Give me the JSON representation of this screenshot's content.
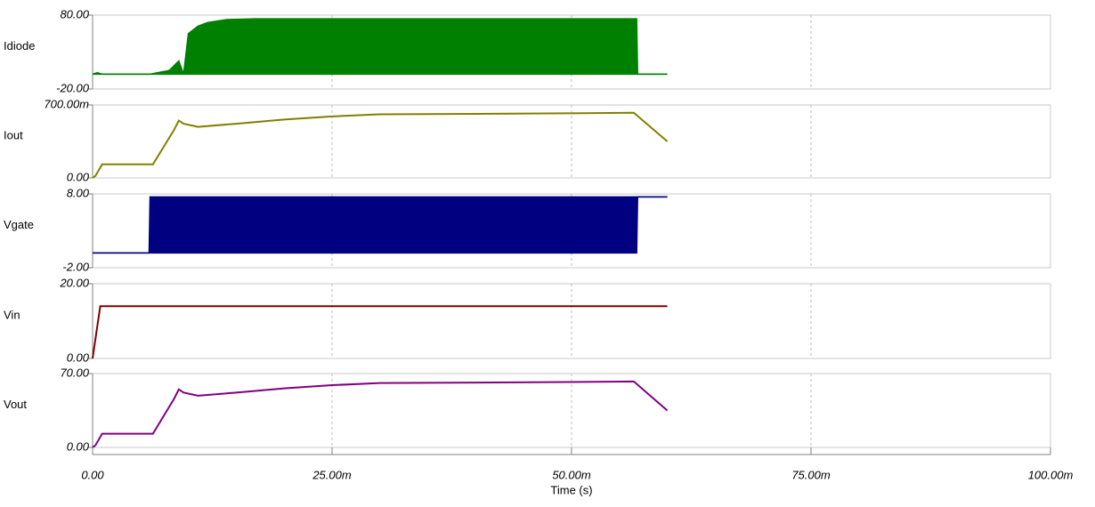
{
  "chart_data": [
    {
      "type": "band",
      "label": "Idiode",
      "color": "#008000",
      "grid": true,
      "xlim": [
        0,
        0.1
      ],
      "ylim": [
        -20,
        80
      ],
      "yticks": [
        {
          "value": -20,
          "label": "-20.00"
        },
        {
          "value": 80,
          "label": "80.00"
        }
      ],
      "x": [
        0,
        0.0005,
        0.001,
        0.006,
        0.008,
        0.009,
        0.0095,
        0.01,
        0.011,
        0.012,
        0.014,
        0.017,
        0.0568,
        0.0569,
        0.06
      ],
      "max": [
        0,
        2,
        0,
        0,
        5,
        18,
        0,
        55,
        65,
        70,
        74,
        75,
        75,
        0,
        0
      ],
      "min": [
        0,
        0,
        0,
        0,
        0,
        0,
        0,
        0,
        0,
        0,
        0,
        0,
        0,
        0,
        0
      ]
    },
    {
      "type": "line",
      "label": "Iout",
      "color": "#808000",
      "grid": true,
      "xlim": [
        0,
        0.1
      ],
      "ylim": [
        0,
        0.7
      ],
      "yticks": [
        {
          "value": 0,
          "label": "0.00"
        },
        {
          "value": 0.7,
          "label": "700.00m"
        }
      ],
      "x": [
        0,
        0.0003,
        0.001,
        0.0063,
        0.0085,
        0.009,
        0.0095,
        0.011,
        0.015,
        0.02,
        0.025,
        0.03,
        0.04,
        0.05,
        0.0565,
        0.06
      ],
      "values": [
        0,
        0.02,
        0.13,
        0.13,
        0.46,
        0.55,
        0.52,
        0.49,
        0.52,
        0.56,
        0.59,
        0.61,
        0.615,
        0.62,
        0.625,
        0.35
      ]
    },
    {
      "type": "band",
      "label": "Vgate",
      "color": "#000080",
      "grid": true,
      "xlim": [
        0,
        0.1
      ],
      "ylim": [
        -2,
        8
      ],
      "yticks": [
        {
          "value": -2,
          "label": "-2.00"
        },
        {
          "value": 8,
          "label": "8.00"
        }
      ],
      "x": [
        0,
        0.0059,
        0.006,
        0.0568,
        0.0569,
        0.06
      ],
      "max": [
        0,
        0,
        7.6,
        7.6,
        7.6,
        7.6
      ],
      "min": [
        0,
        0,
        0,
        0,
        7.6,
        7.6
      ]
    },
    {
      "type": "line",
      "label": "Vin",
      "color": "#800000",
      "grid": true,
      "xlim": [
        0,
        0.1
      ],
      "ylim": [
        0,
        20
      ],
      "yticks": [
        {
          "value": 0,
          "label": "0.00"
        },
        {
          "value": 20,
          "label": "20.00"
        }
      ],
      "x": [
        0,
        0.0008,
        0.06
      ],
      "values": [
        0,
        14,
        14
      ]
    },
    {
      "type": "line",
      "label": "Vout",
      "color": "#800080",
      "grid": true,
      "xlim": [
        0,
        0.1
      ],
      "ylim": [
        0,
        70
      ],
      "yticks": [
        {
          "value": 0,
          "label": "0.00"
        },
        {
          "value": 70,
          "label": "70.00"
        }
      ],
      "x": [
        0,
        0.0003,
        0.001,
        0.0063,
        0.0085,
        0.009,
        0.0095,
        0.011,
        0.015,
        0.02,
        0.025,
        0.03,
        0.04,
        0.05,
        0.0565,
        0.06
      ],
      "values": [
        0,
        2,
        13,
        13,
        46,
        55,
        52,
        49,
        52,
        56,
        59,
        61,
        61.5,
        62,
        62.5,
        35
      ],
      "xlabel": "Time (s)",
      "xticks": [
        {
          "value": 0,
          "label": "0.00"
        },
        {
          "value": 0.025,
          "label": "25.00m"
        },
        {
          "value": 0.05,
          "label": "50.00m"
        },
        {
          "value": 0.075,
          "label": "75.00m"
        },
        {
          "value": 0.1,
          "label": "100.00m"
        }
      ]
    }
  ]
}
